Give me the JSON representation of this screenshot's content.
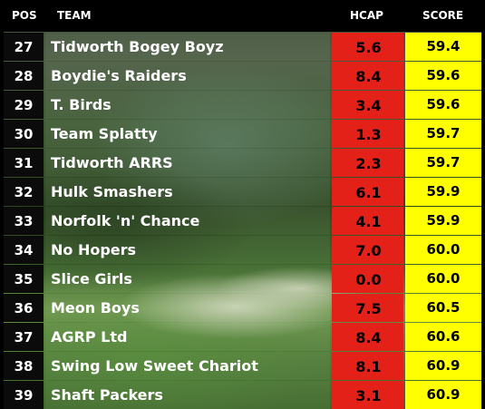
{
  "headers": {
    "pos": "POS",
    "team": "TEAM",
    "hcap": "HCAP",
    "score": "SCORE"
  },
  "colors": {
    "header_bg": "#000000",
    "pos_bg": "#0b0b0b",
    "hcap_bg": "#e32119",
    "score_bg": "#ffff00"
  },
  "rows": [
    {
      "pos": "27",
      "team": "Tidworth Bogey Boyz",
      "hcap": "5.6",
      "score": "59.4"
    },
    {
      "pos": "28",
      "team": "Boydie's Raiders",
      "hcap": "8.4",
      "score": "59.6"
    },
    {
      "pos": "29",
      "team": "T. Birds",
      "hcap": "3.4",
      "score": "59.6"
    },
    {
      "pos": "30",
      "team": "Team Splatty",
      "hcap": "1.3",
      "score": "59.7"
    },
    {
      "pos": "31",
      "team": "Tidworth ARRS",
      "hcap": "2.3",
      "score": "59.7"
    },
    {
      "pos": "32",
      "team": "Hulk Smashers",
      "hcap": "6.1",
      "score": "59.9"
    },
    {
      "pos": "33",
      "team": "Norfolk 'n' Chance",
      "hcap": "4.1",
      "score": "59.9"
    },
    {
      "pos": "34",
      "team": "No Hopers",
      "hcap": "7.0",
      "score": "60.0"
    },
    {
      "pos": "35",
      "team": "Slice Girls",
      "hcap": "0.0",
      "score": "60.0"
    },
    {
      "pos": "36",
      "team": "Meon Boys",
      "hcap": "7.5",
      "score": "60.5"
    },
    {
      "pos": "37",
      "team": "AGRP Ltd",
      "hcap": "8.4",
      "score": "60.6"
    },
    {
      "pos": "38",
      "team": "Swing Low Sweet Chariot",
      "hcap": "8.1",
      "score": "60.9"
    },
    {
      "pos": "39",
      "team": "Shaft Packers",
      "hcap": "3.1",
      "score": "60.9"
    }
  ]
}
